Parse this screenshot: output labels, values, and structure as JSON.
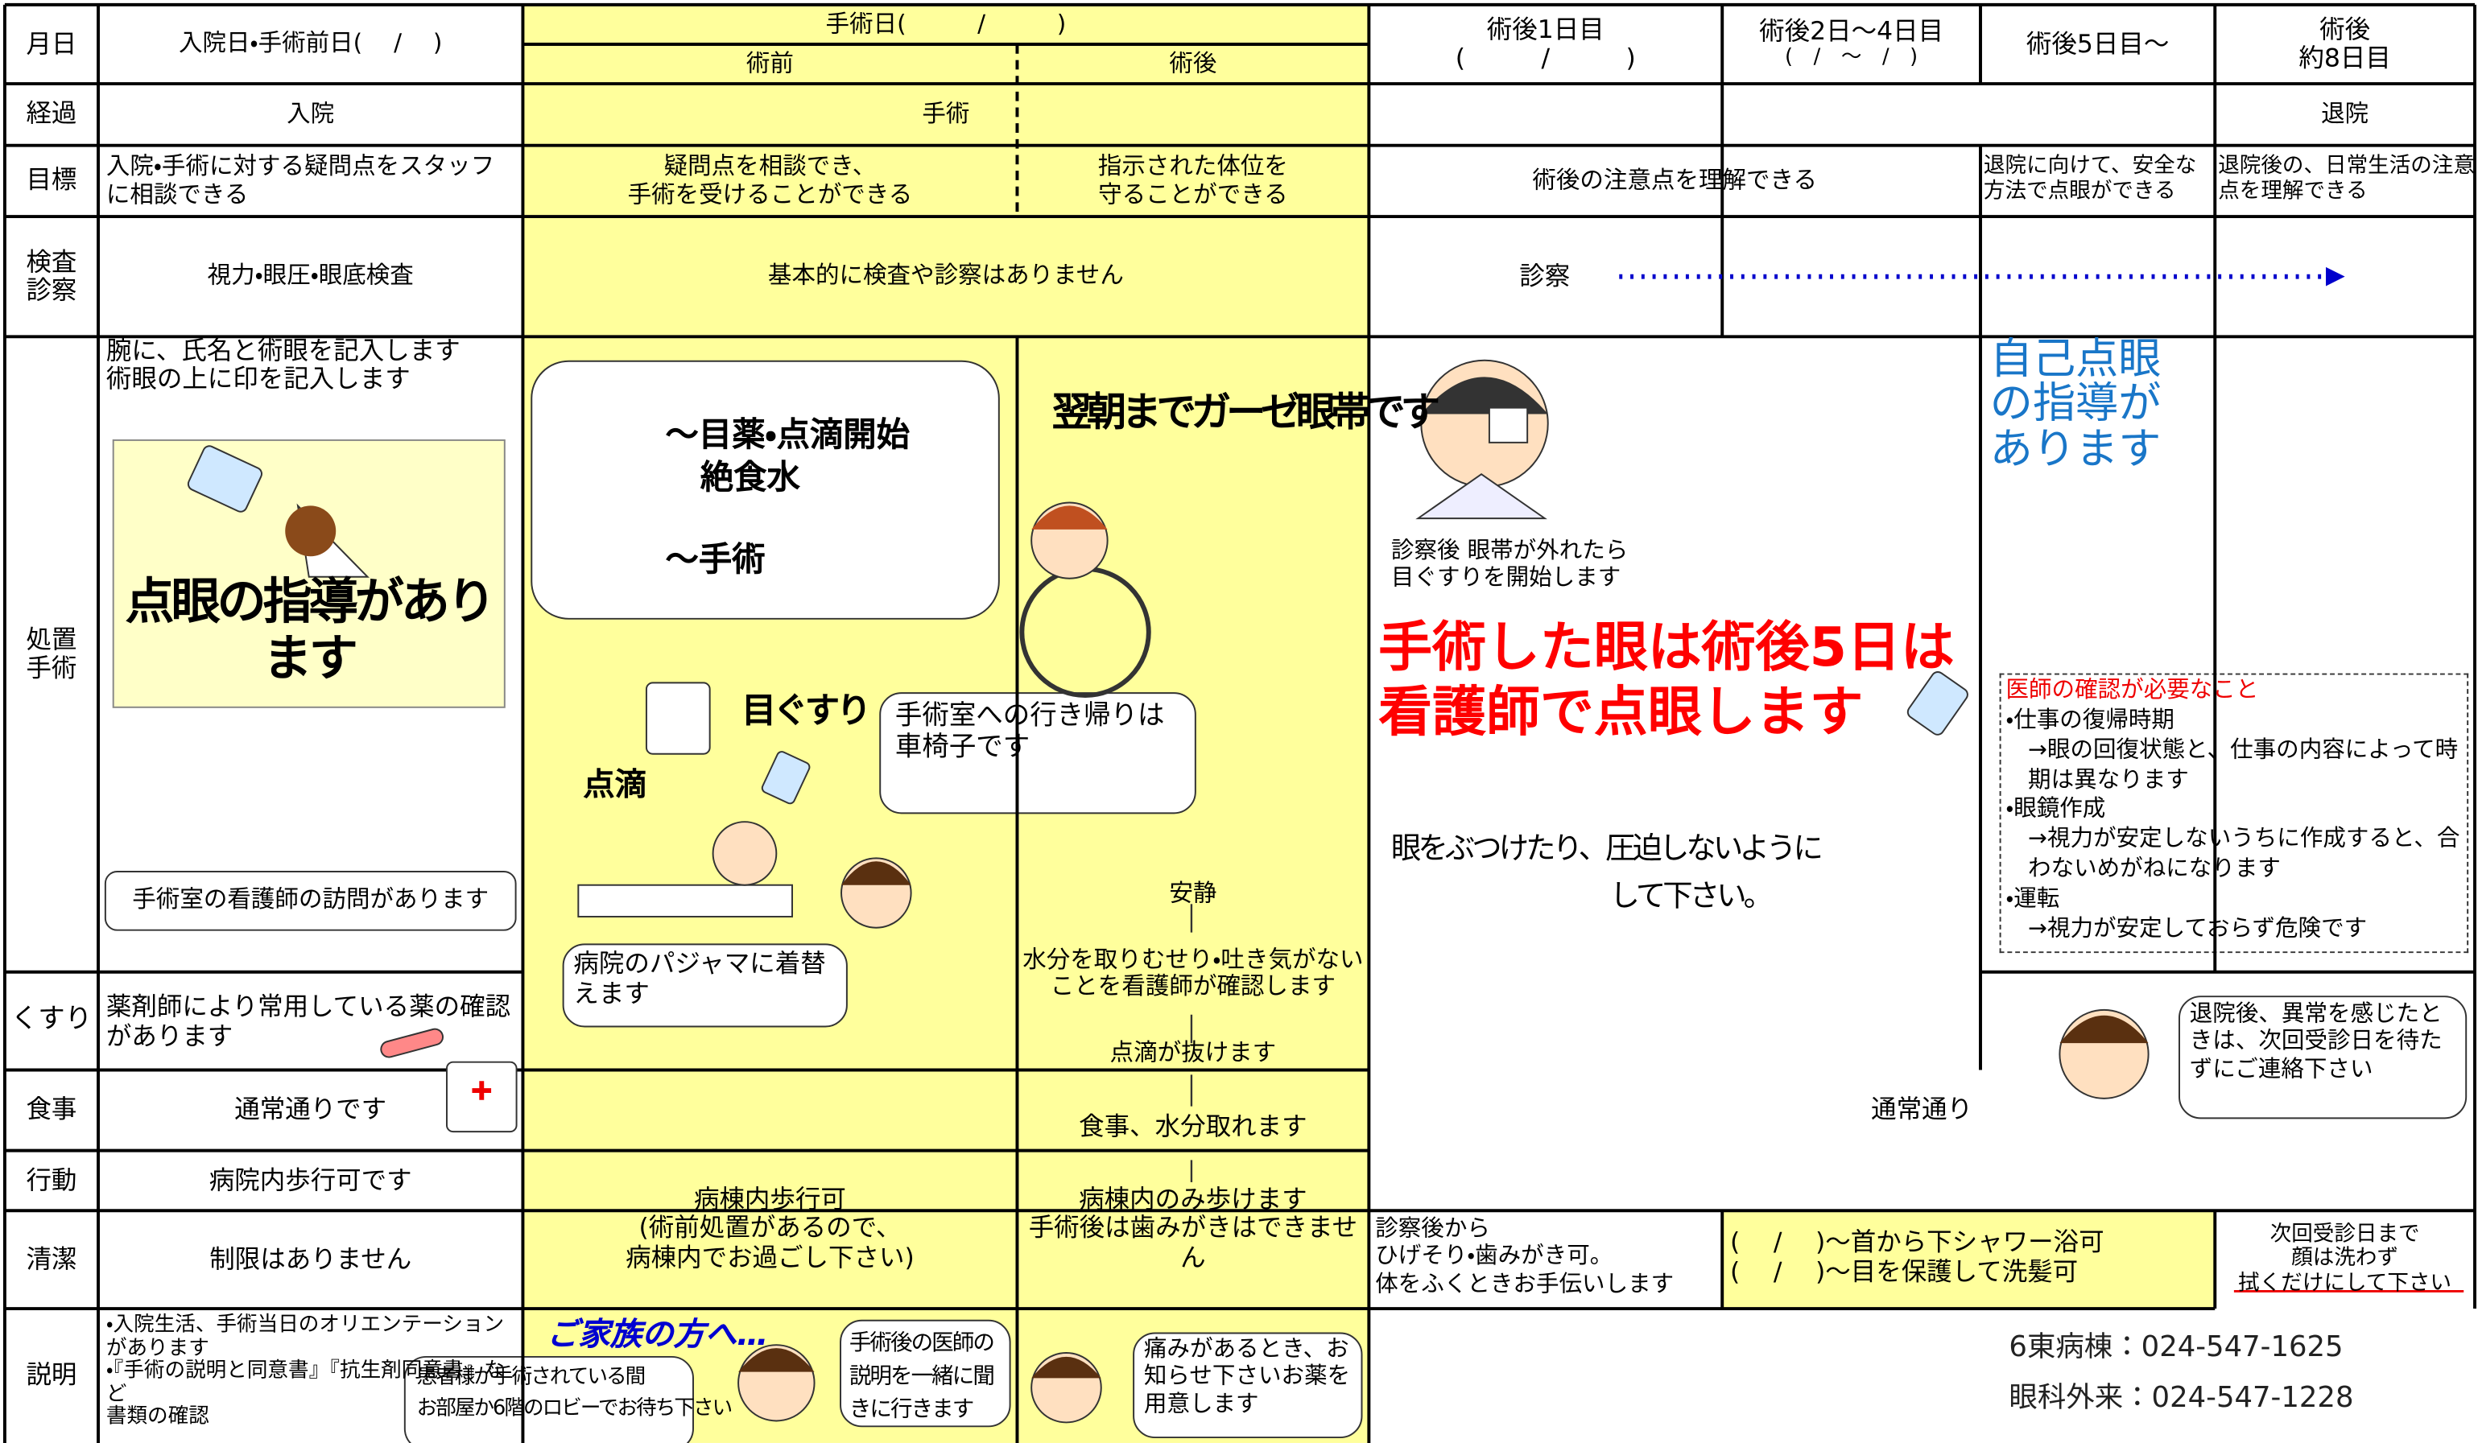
{
  "header": {
    "label": "月日",
    "admission": "入院日・手術前日(　 /　 )",
    "surgery_day": "手術日(　　　/　　　)",
    "pre_op": "術前",
    "post_op": "術後",
    "day1": "術後1日目",
    "day1_date": "(　　　/　　　)",
    "day2_4": "術後2日〜4日目",
    "day2_4_date": "(　/　〜　/　)",
    "day5": "術後5日目〜",
    "day8": "術後",
    "day8_sub": "約8日目"
  },
  "progress": {
    "label": "経過",
    "admission": "入院",
    "surgery": "手術",
    "discharge": "退院"
  },
  "goals": {
    "label": "目標",
    "admission": "入院・手術に対する疑問点をスタッフに相談できる",
    "pre_op": [
      "疑問点を相談でき、",
      "手術を受けることができる"
    ],
    "post_op": [
      "指示された体位を",
      "守ることができる"
    ],
    "day1": "術後の注意点を理解できる",
    "day5": "退院に向けて、安全な方法で点眼ができる",
    "day8": "退院後の、日常生活の注意点を理解できる"
  },
  "exam": {
    "label": [
      "検査",
      "診察"
    ],
    "admission": "視力・眼圧・眼底検査",
    "surgery": "基本的に検査や診察はありません",
    "day1": "診察"
  },
  "treatment": {
    "label": [
      "処置",
      "手術"
    ],
    "admission": [
      "腕に、氏名と術眼を記入します",
      "術眼の上に印を記入します"
    ],
    "admission_note": "点眼の指導があります",
    "admission_visit": "手術室の看護師の訪問があります",
    "pre_op_bubble": [
      "〜目薬・点滴開始",
      "絶食水",
      "〜手術"
    ],
    "drip": "点滴",
    "eye_drops": "目ぐすり",
    "pajamas": "病院のパジャマに着替えます",
    "wheelchair": "手術室への行き帰りは車椅子です",
    "gauze": "翌朝までガーゼ眼帯です",
    "post_steps": [
      "安静",
      "水分を取りむせり・吐き気がないことを看護師が確認します",
      "点滴が抜けます"
    ],
    "day1": [
      "診察後 眼帯が外れたら",
      "目ぐすりを開始します"
    ],
    "day1_red": "手術した眼は術後5日は看護師で点眼します",
    "day1_caution": [
      "眼をぶつけたり、圧迫しないように",
      "して下さい。"
    ],
    "day5": "自己点眼の指導があります",
    "doctor_box": {
      "title": "医師の確認が必要なこと",
      "items": [
        "・仕事の復帰時期",
        "→眼の回復状態と、仕事の内容によって時期は異なります",
        "・眼鏡作成",
        "→視力が安定しないうちに作成すると、合わないめがねになります",
        "・運転",
        "→視力が安定しておらず危険です"
      ]
    }
  },
  "medicine": {
    "label": "くすり",
    "admission": "薬剤師により常用している薬の確認があります",
    "after_discharge": "退院後、異常を感じたときは、次回受診日を待たずにご連絡下さい"
  },
  "meals": {
    "label": "食事",
    "admission": "通常通りです",
    "post_op": "食事、水分取れます",
    "day1": "通常通り"
  },
  "activity": {
    "label": "行動",
    "admission": "病院内歩行可です",
    "pre_op": [
      "病棟内歩行可",
      "(術前処置があるので、",
      "病棟内でお過ごし下さい)"
    ],
    "post_op": [
      "病棟内のみ歩けます",
      "手術後は歯みがきはできません"
    ]
  },
  "hygiene": {
    "label": "清潔",
    "admission": "制限はありません",
    "day1": [
      "診察後から",
      "ひげそり・歯みがき可。",
      "体をふくときお手伝いします"
    ],
    "day2_4": [
      "(　 /　 )〜首から下シャワー浴可",
      "(　 /　 )〜目を保護して洗髪可"
    ],
    "day8": [
      "次回受診日まで",
      "顔は洗わず",
      "拭くだけにして下さい"
    ]
  },
  "explanation": {
    "label": "説明",
    "admission": [
      "・入院生活、手術当日のオリエンテーションがあります",
      "・『手術の説明と同意書』『抗生剤同意書』など",
      "書類の確認"
    ],
    "family": "ご家族の方へ…",
    "family_wait": [
      "患者様が手術されている間",
      "お部屋か6階のロビーでお待ち下さい"
    ],
    "family_doctor": "手術後の医師の説明を一緒に聞きに行きます",
    "pain": "痛みがあるとき、お知らせ下さいお薬を用意します",
    "phone_ward": "6東病棟：024-547-1625",
    "phone_outpatient": "眼科外来：024-547-1228"
  }
}
